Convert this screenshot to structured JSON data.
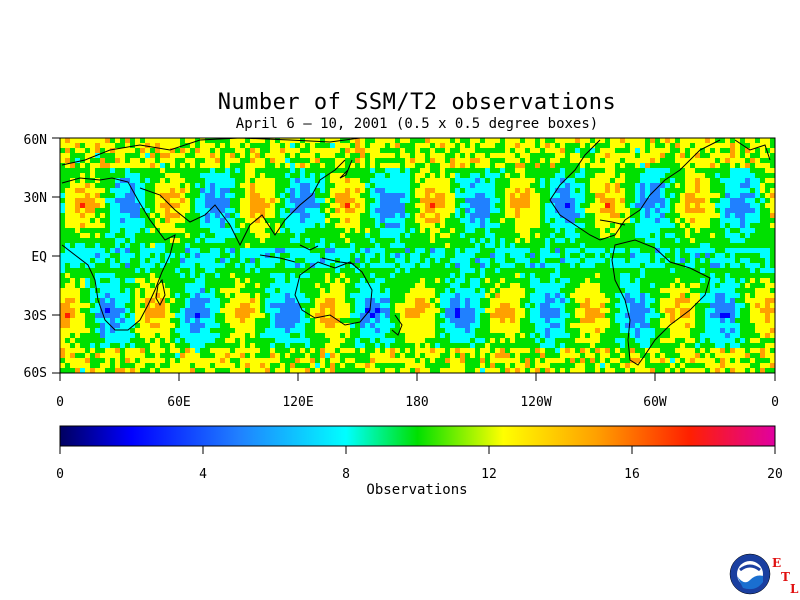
{
  "title": "Number of SSM/T2 observations",
  "subtitle": "April 6 – 10, 2001 (0.5 x 0.5 degree boxes)",
  "map": {
    "lat_ticks": [
      "60N",
      "30N",
      "EQ",
      "30S",
      "60S"
    ],
    "lon_ticks": [
      "0",
      "60E",
      "120E",
      "180",
      "120W",
      "60W",
      "0"
    ],
    "lat_range": [
      -60,
      60
    ],
    "lon_range": [
      0,
      360
    ],
    "grid_resolution": "0.5 x 0.5 degree boxes",
    "palette": [
      "#000060",
      "#0000ff",
      "#2080ff",
      "#00ffff",
      "#00e000",
      "#ffff00",
      "#ffa000",
      "#ff2000",
      "#e000a0"
    ]
  },
  "colorbar": {
    "ticks": [
      "0",
      "4",
      "8",
      "12",
      "16",
      "20"
    ],
    "range": [
      0,
      20
    ],
    "label": "Observations"
  },
  "logo": {
    "name": "NOAA",
    "letters": [
      "E",
      "T",
      "L"
    ],
    "accent_color": "#e01010"
  }
}
